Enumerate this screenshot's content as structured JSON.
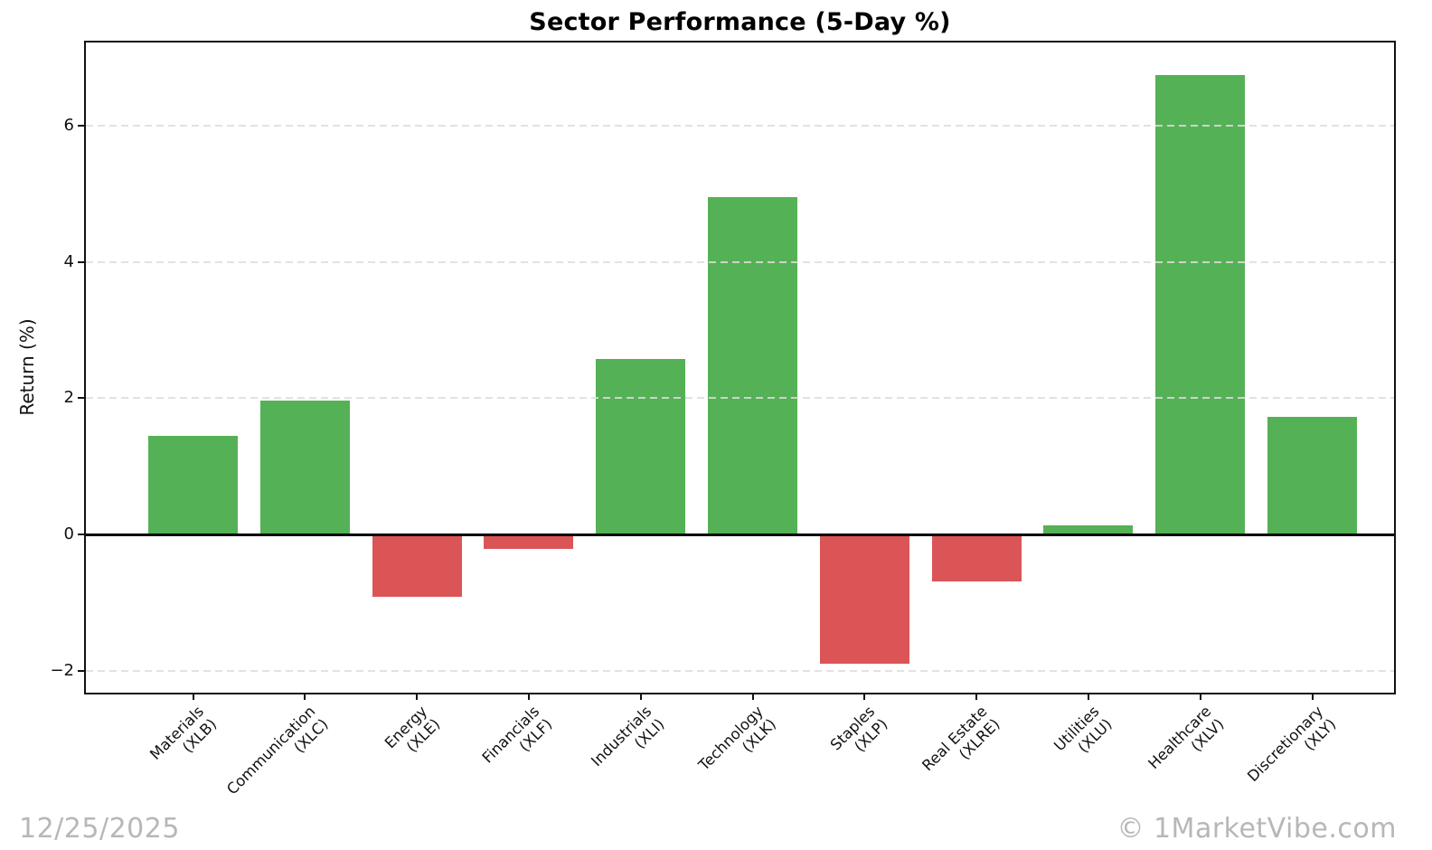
{
  "title": "Sector Performance (5-Day %)",
  "footer": {
    "date": "12/25/2025",
    "watermark": "© 1MarketVibe.com"
  },
  "chart_data": {
    "type": "bar",
    "title": "Sector Performance (5-Day %)",
    "xlabel": "",
    "ylabel": "Return (%)",
    "categories": [
      {
        "line1": "Materials",
        "line2": "(XLB)"
      },
      {
        "line1": "Communication",
        "line2": "(XLC)"
      },
      {
        "line1": "Energy",
        "line2": "(XLE)"
      },
      {
        "line1": "Financials",
        "line2": "(XLF)"
      },
      {
        "line1": "Industrials",
        "line2": "(XLI)"
      },
      {
        "line1": "Technology",
        "line2": "(XLK)"
      },
      {
        "line1": "Staples",
        "line2": "(XLP)"
      },
      {
        "line1": "Real Estate",
        "line2": "(XLRE)"
      },
      {
        "line1": "Utilities",
        "line2": "(XLU)"
      },
      {
        "line1": "Healthcare",
        "line2": "(XLV)"
      },
      {
        "line1": "Discretionary",
        "line2": "(XLY)"
      }
    ],
    "values": [
      1.45,
      1.97,
      -0.92,
      -0.21,
      2.58,
      4.96,
      -1.9,
      -0.69,
      0.13,
      6.74,
      1.72
    ],
    "positive_color": "#55b155",
    "negative_color": "#db5557",
    "yticks": [
      {
        "value": 6,
        "label": "6"
      },
      {
        "value": 4,
        "label": "4"
      },
      {
        "value": 2,
        "label": "2"
      },
      {
        "value": 0,
        "label": "0"
      },
      {
        "value": -2,
        "label": "−2"
      }
    ],
    "ylim": [
      -2.32,
      7.22
    ],
    "grid": "horizontal-dashed",
    "legend_position": "none",
    "bar_orientation": "vertical"
  }
}
